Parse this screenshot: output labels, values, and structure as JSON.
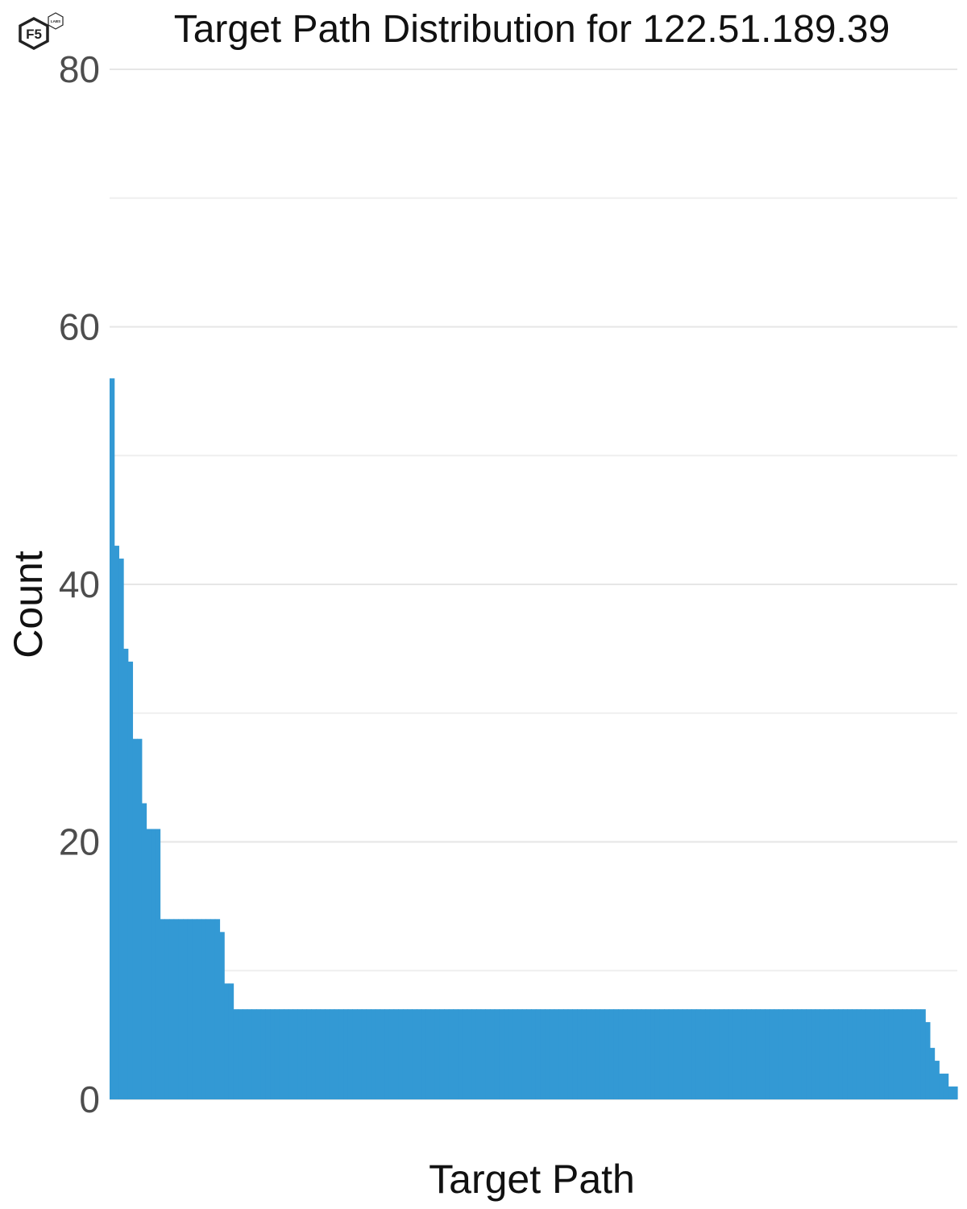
{
  "logo": {
    "main_text": "F5",
    "badge_text": "LABS"
  },
  "chart_data": {
    "type": "bar",
    "title": "Target Path Distribution for 122.51.189.39",
    "xlabel": "Target Path",
    "ylabel": "Count",
    "ylim": [
      0,
      80
    ],
    "yticks": [
      0,
      20,
      40,
      60,
      80
    ],
    "grid": true,
    "bar_color": "#3399d4",
    "bar_count": 185,
    "segments": [
      {
        "from": 1,
        "to": 1,
        "count": 56
      },
      {
        "from": 2,
        "to": 2,
        "count": 43
      },
      {
        "from": 3,
        "to": 3,
        "count": 42
      },
      {
        "from": 4,
        "to": 4,
        "count": 35
      },
      {
        "from": 5,
        "to": 5,
        "count": 34
      },
      {
        "from": 6,
        "to": 7,
        "count": 28
      },
      {
        "from": 8,
        "to": 8,
        "count": 23
      },
      {
        "from": 9,
        "to": 11,
        "count": 21
      },
      {
        "from": 12,
        "to": 24,
        "count": 14
      },
      {
        "from": 25,
        "to": 25,
        "count": 13
      },
      {
        "from": 26,
        "to": 26,
        "count": 9
      },
      {
        "from": 27,
        "to": 27,
        "count": 9
      },
      {
        "from": 28,
        "to": 178,
        "count": 7
      },
      {
        "from": 179,
        "to": 179,
        "count": 6
      },
      {
        "from": 180,
        "to": 180,
        "count": 4
      },
      {
        "from": 181,
        "to": 181,
        "count": 3
      },
      {
        "from": 182,
        "to": 183,
        "count": 2
      },
      {
        "from": 184,
        "to": 185,
        "count": 1
      }
    ]
  }
}
